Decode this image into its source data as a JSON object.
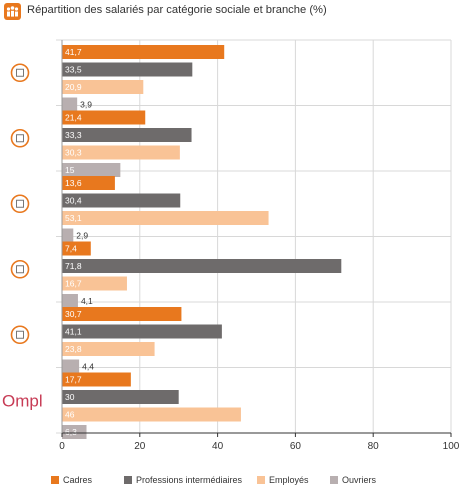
{
  "title": "Répartition des salariés par catégorie sociale et branche (%)",
  "logo_text": "Ompl",
  "colors": {
    "accent": "#e8781e",
    "grid": "#d8d8d8",
    "axis": "#333333",
    "icon_circle": "#e8781e"
  },
  "group_icons": [
    "scales-of-justice-icon",
    "house-icon",
    "stethoscope-icon",
    "medical-monitor-icon",
    "pharmacy-icon",
    "ompl-logo"
  ],
  "chart_data": {
    "type": "bar",
    "orientation": "horizontal",
    "title": "Répartition des salariés par catégorie sociale et branche (%)",
    "xlim": [
      0,
      100
    ],
    "x_ticks": [
      0,
      20,
      40,
      60,
      80,
      100
    ],
    "grid": true,
    "legend_position": "bottom",
    "series": [
      {
        "name": "Cadres",
        "color": "#e8781e",
        "values": [
          41.7,
          21.4,
          13.6,
          7.4,
          30.7,
          17.7
        ],
        "labels": [
          "41,7",
          "21,4",
          "13,6",
          "7,4",
          "30,7",
          "17,7"
        ]
      },
      {
        "name": "Professions intermédiaires",
        "color": "#6e6b6b",
        "values": [
          33.5,
          33.3,
          30.4,
          71.8,
          41.1,
          30
        ],
        "labels": [
          "33,5",
          "33,3",
          "30,4",
          "71,8",
          "41,1",
          "30"
        ]
      },
      {
        "name": "Employés",
        "color": "#f9c396",
        "values": [
          20.9,
          30.3,
          53.1,
          16.7,
          23.8,
          46
        ],
        "labels": [
          "20,9",
          "30,3",
          "53,1",
          "16,7",
          "23,8",
          "46"
        ]
      },
      {
        "name": "Ouvriers",
        "color": "#b8afb0",
        "values": [
          3.9,
          15,
          2.9,
          4.1,
          4.4,
          6.3
        ],
        "labels": [
          "3,9",
          "15",
          "2,9",
          "4,1",
          "4,4",
          "6,3"
        ]
      }
    ]
  }
}
